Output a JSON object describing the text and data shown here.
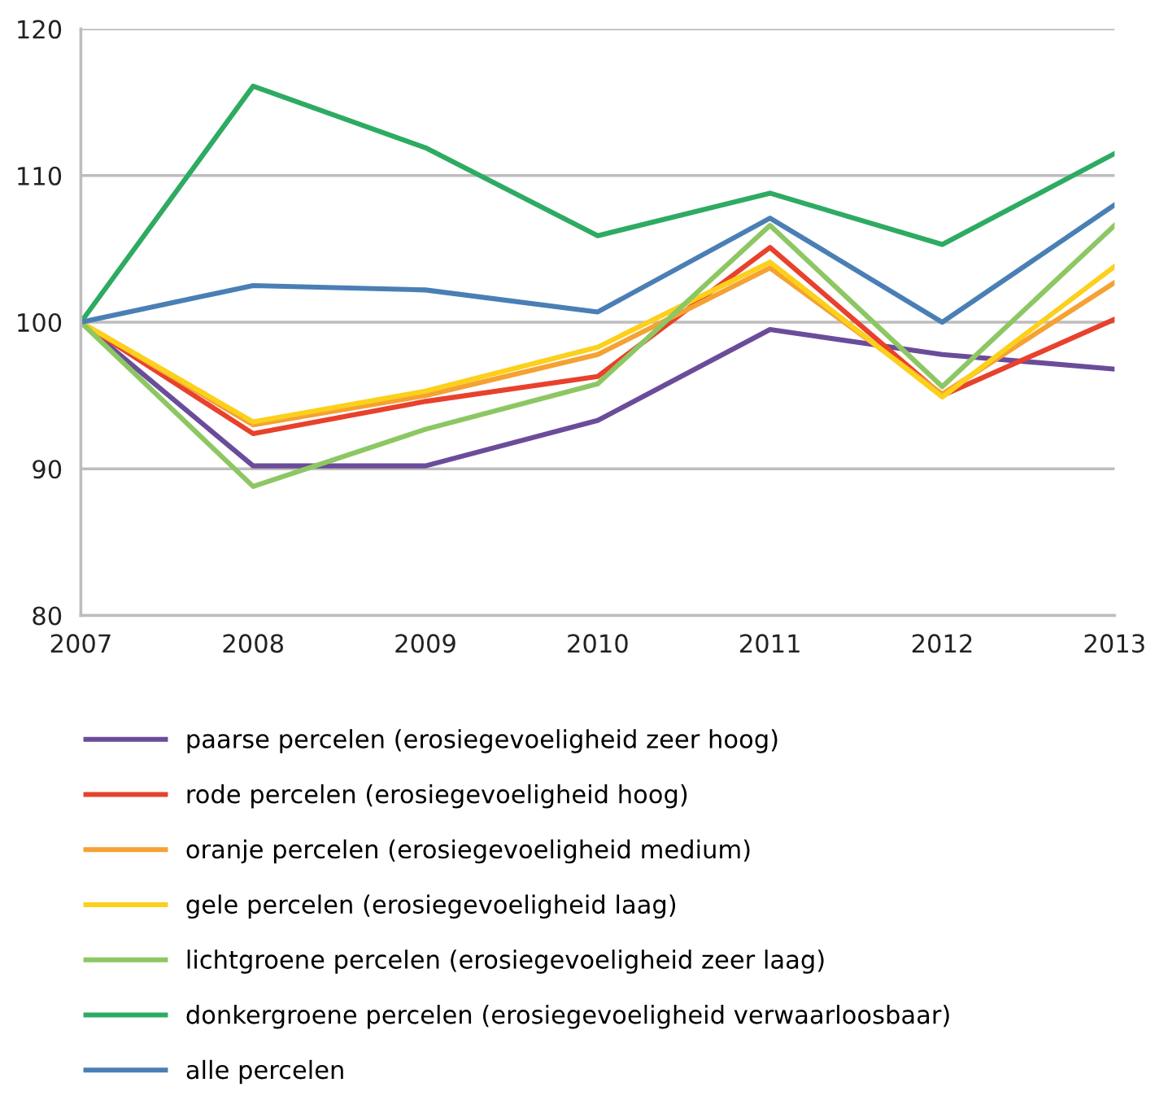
{
  "chart_data": {
    "type": "line",
    "x": [
      2007,
      2008,
      2009,
      2010,
      2011,
      2012,
      2013
    ],
    "xlim": [
      2007,
      2013
    ],
    "xticks": [
      2007,
      2008,
      2009,
      2010,
      2011,
      2012,
      2013
    ],
    "ylim": [
      80,
      120
    ],
    "yticks": [
      80,
      90,
      100,
      110,
      120
    ],
    "grid": "y",
    "legend": "bottom",
    "marker": "none",
    "line_style": "solid",
    "series": [
      {
        "name": "paarse percelen (erosiegevoeligheid zeer hoog)",
        "color": "#6b4c9a",
        "values": [
          100,
          90.2,
          90.2,
          93.3,
          99.5,
          97.8,
          96.8
        ]
      },
      {
        "name": "rode percelen (erosiegevoeligheid hoog)",
        "color": "#e8412c",
        "values": [
          100,
          92.4,
          94.6,
          96.3,
          105.1,
          95.0,
          100.2
        ]
      },
      {
        "name": "oranje percelen (erosiegevoeligheid medium)",
        "color": "#f5a134",
        "values": [
          100,
          93.0,
          95.0,
          97.8,
          103.7,
          95.1,
          102.7
        ]
      },
      {
        "name": "gele percelen (erosiegevoeligheid laag)",
        "color": "#fcd01b",
        "values": [
          100,
          93.2,
          95.3,
          98.3,
          104.1,
          94.9,
          103.8
        ]
      },
      {
        "name": "lichtgroene percelen (erosiegevoeligheid zeer laag)",
        "color": "#8dc763",
        "values": [
          100,
          88.8,
          92.7,
          95.8,
          106.6,
          95.6,
          106.6
        ]
      },
      {
        "name": "donkergroene percelen (erosiegevoeligheid verwaarloosbaar)",
        "color": "#2eab62",
        "values": [
          100,
          116.1,
          111.9,
          105.9,
          108.8,
          105.3,
          111.5
        ]
      },
      {
        "name": "alle percelen",
        "color": "#4a7fb5",
        "values": [
          100,
          102.5,
          102.2,
          100.7,
          107.1,
          100.0,
          108.0
        ]
      }
    ]
  }
}
